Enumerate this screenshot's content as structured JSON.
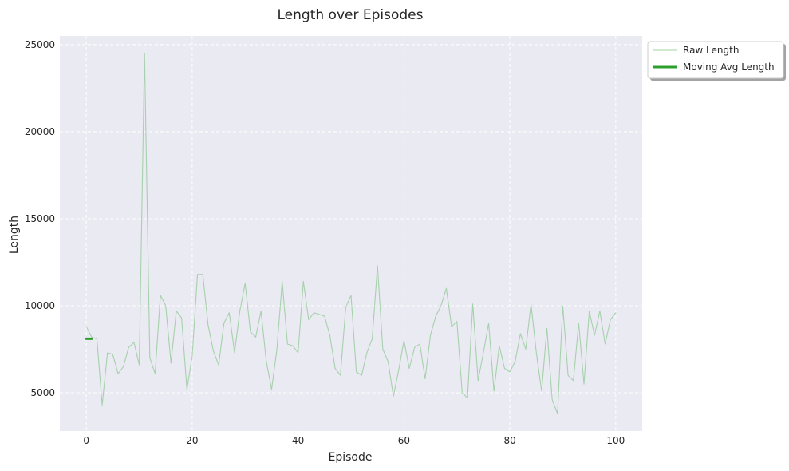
{
  "chart_data": {
    "type": "line",
    "title": "Length over Episodes",
    "xlabel": "Episode",
    "ylabel": "Length",
    "xlim": [
      -5,
      105
    ],
    "ylim": [
      2800,
      25500
    ],
    "xticks": [
      0,
      20,
      40,
      60,
      80,
      100
    ],
    "yticks": [
      5000,
      10000,
      15000,
      20000,
      25000
    ],
    "grid": true,
    "legend_position": "upper-right-outside",
    "series": [
      {
        "name": "Raw Length",
        "color": "#2ca02c",
        "style": "thin-translucent",
        "x": [
          0,
          1,
          2,
          3,
          4,
          5,
          6,
          7,
          8,
          9,
          10,
          11,
          12,
          13,
          14,
          15,
          16,
          17,
          18,
          19,
          20,
          21,
          22,
          23,
          24,
          25,
          26,
          27,
          28,
          29,
          30,
          31,
          32,
          33,
          34,
          35,
          36,
          37,
          38,
          39,
          40,
          41,
          42,
          43,
          44,
          45,
          46,
          47,
          48,
          49,
          50,
          51,
          52,
          53,
          54,
          55,
          56,
          57,
          58,
          59,
          60,
          61,
          62,
          63,
          64,
          65,
          66,
          67,
          68,
          69,
          70,
          71,
          72,
          73,
          74,
          75,
          76,
          77,
          78,
          79,
          80,
          81,
          82,
          83,
          84,
          85,
          86,
          87,
          88,
          89,
          90,
          91,
          92,
          93,
          94,
          95,
          96,
          97,
          98,
          99,
          100
        ],
        "values": [
          8800,
          8200,
          8100,
          4300,
          7300,
          7200,
          6100,
          6500,
          7600,
          7900,
          6600,
          24500,
          7000,
          6100,
          10600,
          10000,
          6700,
          9700,
          9300,
          5200,
          7100,
          11800,
          11800,
          8900,
          7400,
          6600,
          9000,
          9600,
          7300,
          9700,
          11300,
          8500,
          8200,
          9700,
          6800,
          5200,
          7500,
          11400,
          7800,
          7700,
          7300,
          11400,
          9200,
          9600,
          9500,
          9400,
          8300,
          6400,
          6000,
          9900,
          10600,
          6200,
          6000,
          7300,
          8100,
          12300,
          7500,
          6800,
          4800,
          6300,
          8000,
          6400,
          7600,
          7800,
          5800,
          8300,
          9400,
          10000,
          11000,
          8800,
          9100,
          5000,
          4700,
          10100,
          5700,
          7300,
          9000,
          5100,
          7700,
          6400,
          6200,
          6800,
          8400,
          7500,
          10100,
          7300,
          5100,
          8700,
          4600,
          3800,
          10000,
          6000,
          5700,
          9000,
          5500,
          9700,
          8300,
          9700,
          7800,
          9200,
          9600
        ]
      },
      {
        "name": "Moving Avg Length",
        "color": "#2ca02c",
        "style": "thick",
        "x": [
          0,
          1
        ],
        "values": [
          8100,
          8100
        ]
      }
    ]
  }
}
